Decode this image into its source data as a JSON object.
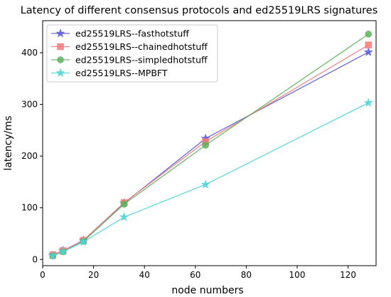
{
  "chart_data": {
    "type": "line",
    "title": "Latency of different consensus protocols and ed25519LRS signatures",
    "xlabel": "node numbers",
    "ylabel": "latency/ms",
    "xlim": [
      0,
      131
    ],
    "ylim": [
      -12,
      462
    ],
    "xticks": [
      0,
      20,
      40,
      60,
      80,
      100,
      120
    ],
    "yticks": [
      0,
      100,
      200,
      300,
      400
    ],
    "grid": false,
    "legend_position": "top-left",
    "x": [
      4,
      8,
      16,
      32,
      64,
      128
    ],
    "series": [
      {
        "name": "ed25519LRS--fasthotstuff",
        "values": [
          8,
          17,
          37,
          109,
          234,
          401
        ],
        "color": "#5a5ad9",
        "marker": "star"
      },
      {
        "name": "ed25519LRS--chainedhotstuff",
        "values": [
          9,
          17,
          37,
          110,
          228,
          415
        ],
        "color": "#f47a7a",
        "marker": "square"
      },
      {
        "name": "ed25519LRS--simpledhotstuff",
        "values": [
          7,
          15,
          35,
          107,
          221,
          436
        ],
        "color": "#5fb25f",
        "marker": "circle"
      },
      {
        "name": "ed25519LRS--MPBFT",
        "values": [
          7,
          15,
          34,
          82,
          145,
          303
        ],
        "color": "#4fd4d8",
        "marker": "star"
      }
    ]
  }
}
